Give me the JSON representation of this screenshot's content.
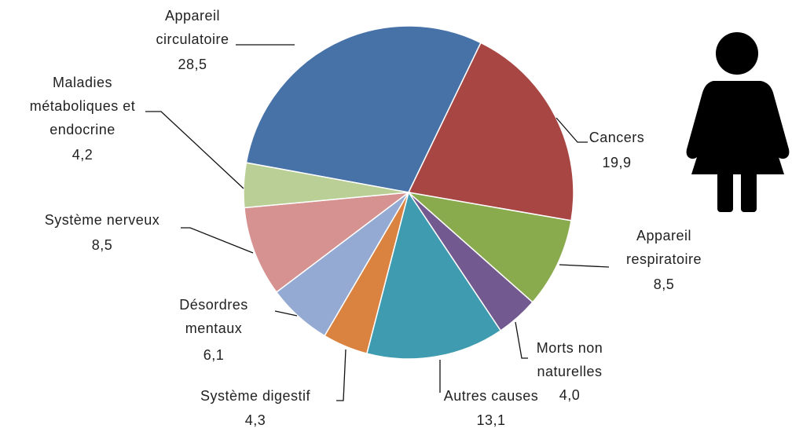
{
  "chart_data": {
    "type": "pie",
    "categories": [
      "Appareil circulatoire",
      "Cancers",
      "Appareil respiratoire",
      "Morts non naturelles",
      "Autres causes",
      "Système digestif",
      "Désordres mentaux",
      "Système nerveux",
      "Maladies métaboliques et endocrine"
    ],
    "values": [
      28.5,
      19.9,
      8.5,
      4.0,
      13.1,
      4.3,
      6.1,
      8.5,
      4.2
    ],
    "value_labels": [
      "28,5",
      "19,9",
      "8,5",
      "4,0",
      "13,1",
      "4,3",
      "6,1",
      "8,5",
      "4,2"
    ],
    "colors": [
      "#4672a8",
      "#a84644",
      "#8aaa4e",
      "#72598f",
      "#3f9baf",
      "#da8340",
      "#95aad3",
      "#d59290",
      "#b9cf95"
    ]
  }
}
